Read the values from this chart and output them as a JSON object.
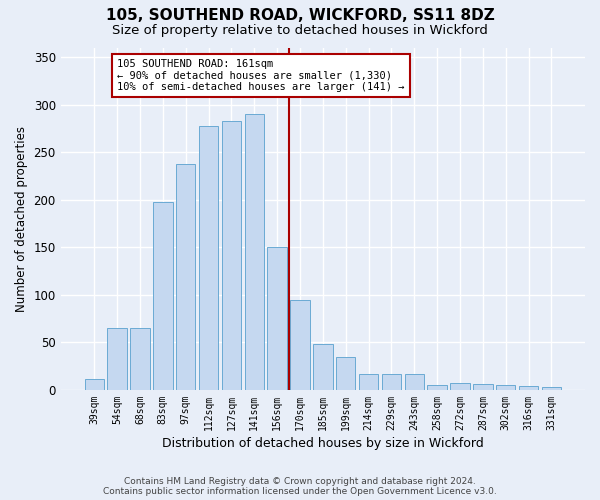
{
  "title": "105, SOUTHEND ROAD, WICKFORD, SS11 8DZ",
  "subtitle": "Size of property relative to detached houses in Wickford",
  "xlabel": "Distribution of detached houses by size in Wickford",
  "ylabel": "Number of detached properties",
  "categories": [
    "39sqm",
    "54sqm",
    "68sqm",
    "83sqm",
    "97sqm",
    "112sqm",
    "127sqm",
    "141sqm",
    "156sqm",
    "170sqm",
    "185sqm",
    "199sqm",
    "214sqm",
    "229sqm",
    "243sqm",
    "258sqm",
    "272sqm",
    "287sqm",
    "302sqm",
    "316sqm",
    "331sqm"
  ],
  "values": [
    12,
    65,
    65,
    198,
    238,
    278,
    283,
    290,
    150,
    95,
    48,
    35,
    17,
    17,
    17,
    5,
    7,
    6,
    5,
    4,
    3
  ],
  "bar_color": "#c5d8f0",
  "bar_edge_color": "#6aaad4",
  "vline_color": "#aa0000",
  "annotation_text": "105 SOUTHEND ROAD: 161sqm\n← 90% of detached houses are smaller (1,330)\n10% of semi-detached houses are larger (141) →",
  "background_color": "#e8eef8",
  "grid_color": "#ffffff",
  "title_fontsize": 11,
  "subtitle_fontsize": 9.5,
  "footer_text": "Contains HM Land Registry data © Crown copyright and database right 2024.\nContains public sector information licensed under the Open Government Licence v3.0.",
  "ylim": [
    0,
    360
  ],
  "yticks": [
    0,
    50,
    100,
    150,
    200,
    250,
    300,
    350
  ],
  "vline_pos": 8.5
}
